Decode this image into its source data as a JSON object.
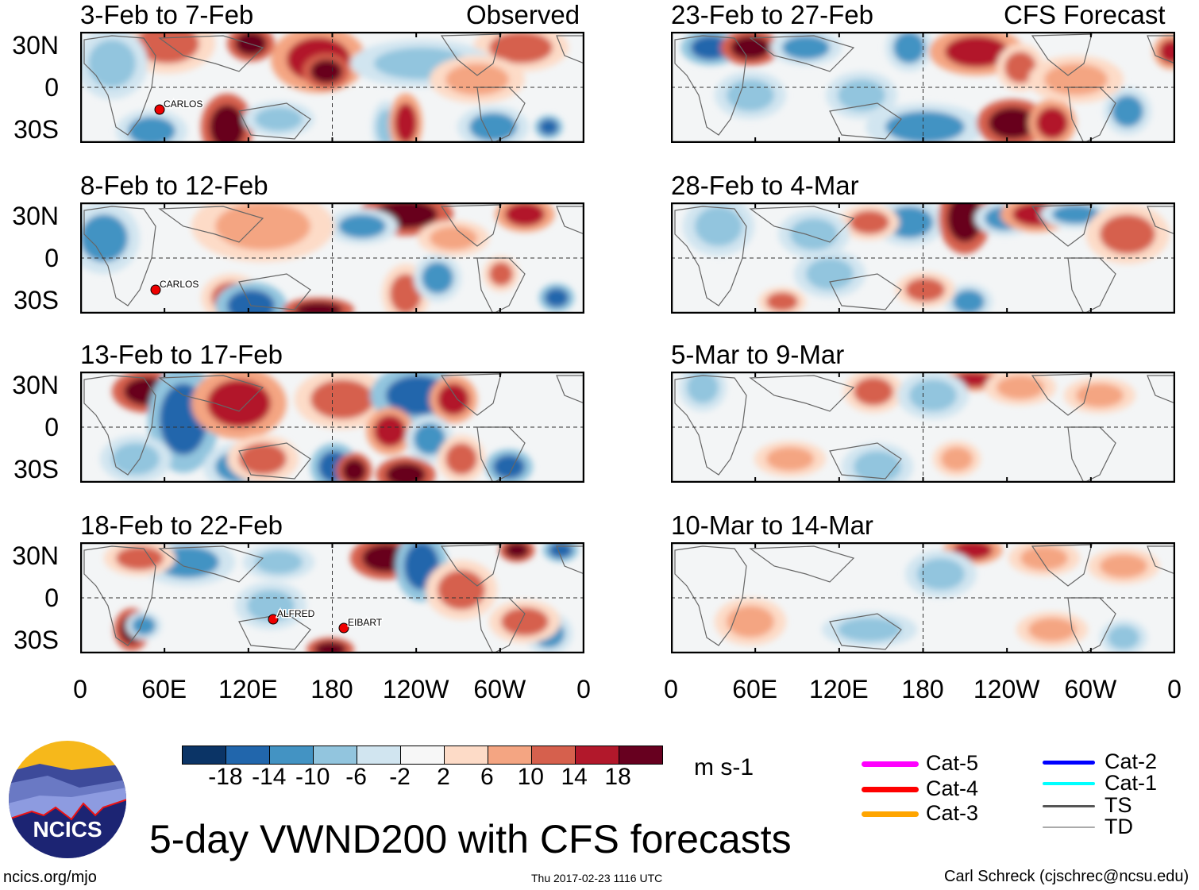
{
  "header": {
    "left_label": "Observed",
    "right_label": "CFS Forecast"
  },
  "panels": {
    "observed": [
      {
        "title": "3-Feb to 7-Feb",
        "storms": [
          "CARLOS"
        ]
      },
      {
        "title": "8-Feb to 12-Feb",
        "storms": [
          "CARLOS"
        ]
      },
      {
        "title": "13-Feb to 17-Feb",
        "storms": []
      },
      {
        "title": "18-Feb to 22-Feb",
        "storms": [
          "ALFRED",
          "EIBART"
        ]
      }
    ],
    "forecast": [
      {
        "title": "23-Feb to 27-Feb"
      },
      {
        "title": "28-Feb to 4-Mar"
      },
      {
        "title": "5-Mar to 9-Mar"
      },
      {
        "title": "10-Mar to 14-Mar"
      }
    ]
  },
  "axes": {
    "lat_ticks": [
      "30N",
      "0",
      "30S"
    ],
    "lon_ticks": [
      "0",
      "60E",
      "120E",
      "180",
      "120W",
      "60W",
      "0"
    ]
  },
  "colorbar": {
    "labels": [
      "-18",
      "-14",
      "-10",
      "-6",
      "-2",
      "2",
      "6",
      "10",
      "14",
      "18"
    ],
    "colors": [
      "#0b3466",
      "#2166ac",
      "#4393c3",
      "#92c5de",
      "#d1e5f0",
      "#f7f7f7",
      "#fddbc7",
      "#f4a582",
      "#d6604d",
      "#b2182b",
      "#67001f"
    ],
    "units": "m s-1"
  },
  "legend": [
    {
      "label": "Cat-5",
      "color": "#ff00ff"
    },
    {
      "label": "Cat-4",
      "color": "#ff0000"
    },
    {
      "label": "Cat-3",
      "color": "#ffa500"
    },
    {
      "label": "Cat-2",
      "color": "#0000ff"
    },
    {
      "label": "Cat-1",
      "color": "#00ffff"
    },
    {
      "label": "TS",
      "color": "#555555"
    },
    {
      "label": "TD",
      "color": "#aaaaaa"
    }
  ],
  "logo": {
    "text": "NCICS"
  },
  "footer": {
    "title": "5-day VWND200 with CFS forecasts",
    "url": "ncics.org/mjo",
    "timestamp": "Thu 2017-02-23 1116 UTC",
    "credit": "Carl Schreck (cjschrec@ncsu.edu)"
  }
}
